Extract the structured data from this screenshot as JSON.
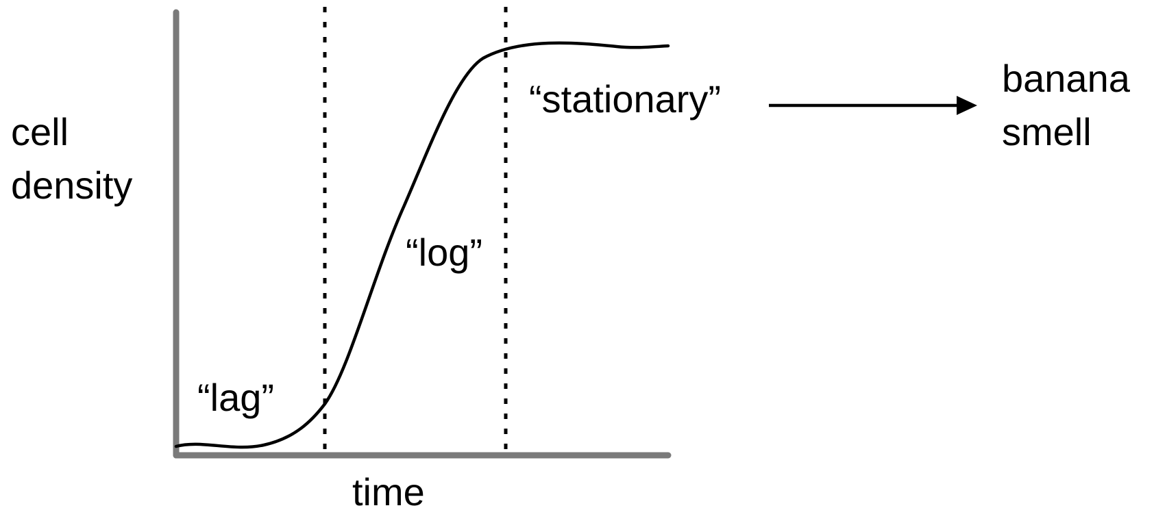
{
  "axes": {
    "y_label_line1": "cell",
    "y_label_line2": "density",
    "x_label": "time"
  },
  "phases": {
    "lag": "“lag”",
    "log": "“log”",
    "stationary": "“stationary”"
  },
  "outcome": {
    "line1": "banana",
    "line2": "smell"
  },
  "colors": {
    "axis": "#7a7a7a",
    "curve": "#000000",
    "text": "#000000"
  }
}
